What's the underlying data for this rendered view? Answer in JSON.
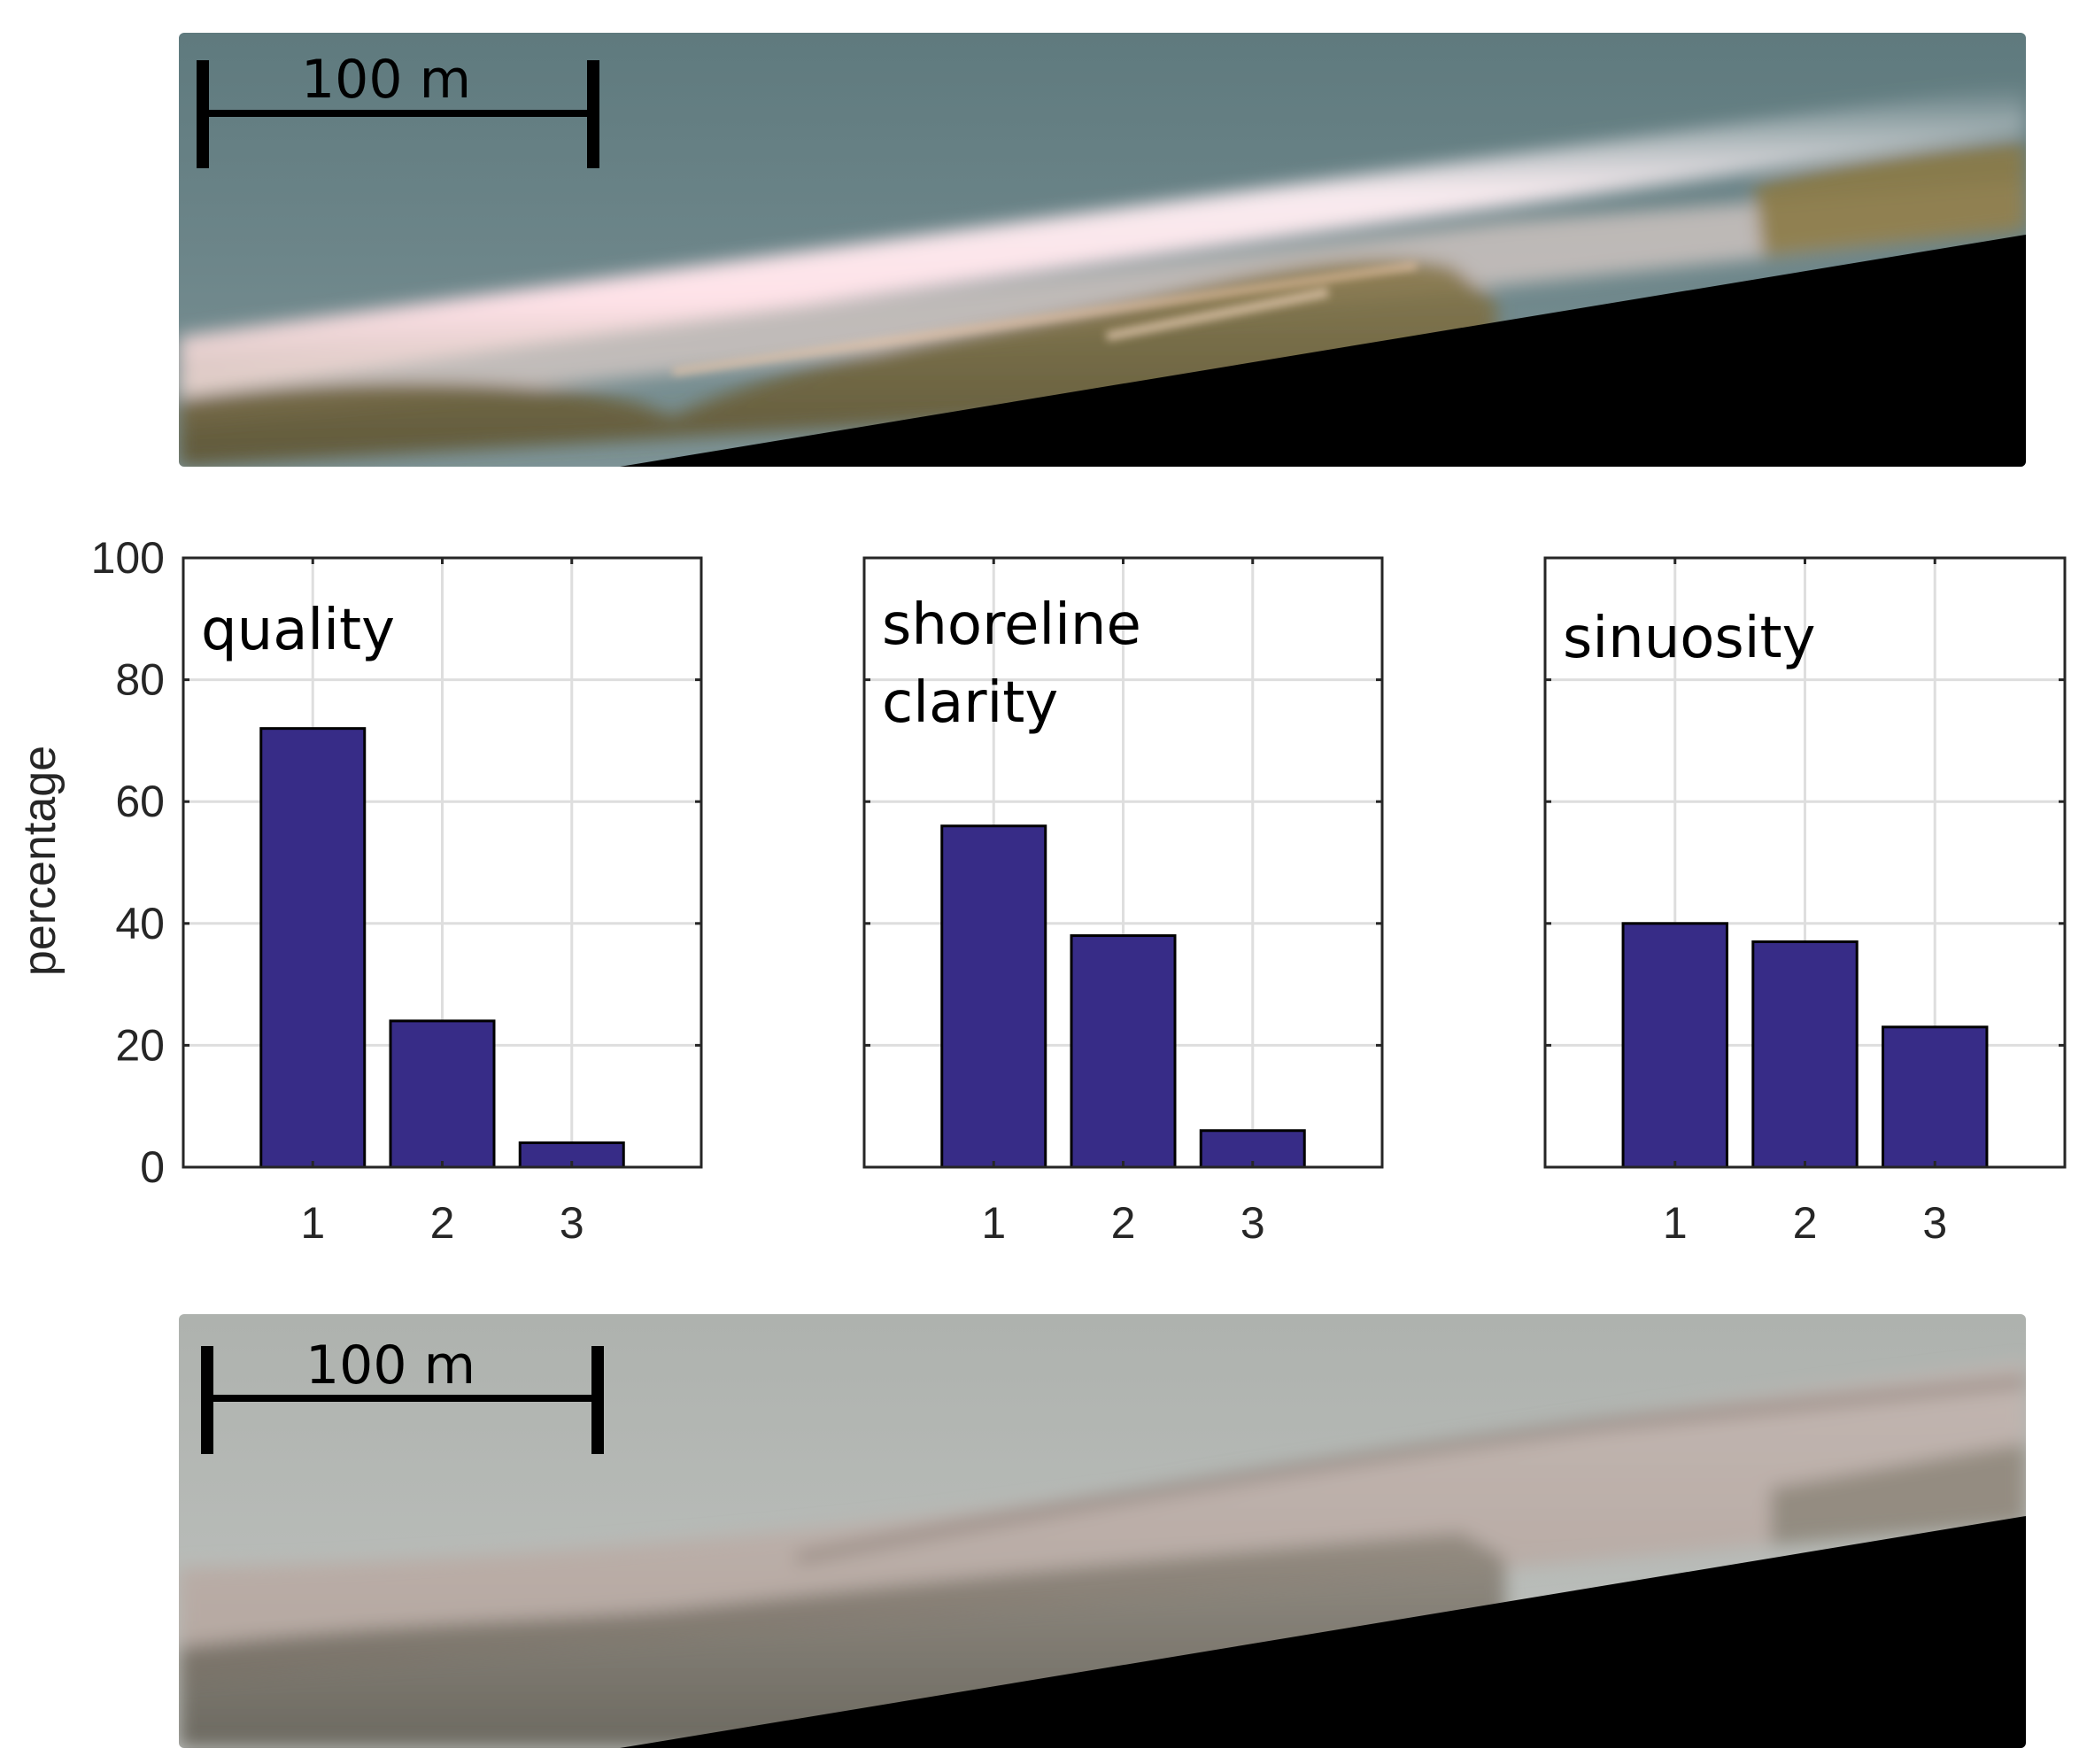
{
  "scale_bars": [
    {
      "label": "100 m"
    },
    {
      "label": "100 m"
    }
  ],
  "y_axis": {
    "label": "percentage",
    "ticks": [
      "0",
      "20",
      "40",
      "60",
      "80",
      "100"
    ]
  },
  "colors": {
    "bar": "#372c87",
    "grid": "#dedede",
    "axis": "#262626"
  },
  "chart_data": [
    {
      "type": "bar",
      "title": "quality",
      "categories": [
        "1",
        "2",
        "3"
      ],
      "values": [
        72,
        24,
        4
      ],
      "ylabel": "percentage",
      "ylim": [
        0,
        100
      ],
      "xlim": [
        0,
        4
      ],
      "grid": true,
      "legend": "none"
    },
    {
      "type": "bar",
      "title": "shoreline clarity",
      "title_lines": [
        "shoreline",
        "clarity"
      ],
      "categories": [
        "1",
        "2",
        "3"
      ],
      "values": [
        56,
        38,
        6
      ],
      "ylim": [
        0,
        100
      ],
      "xlim": [
        0,
        4
      ],
      "grid": true,
      "legend": "none"
    },
    {
      "type": "bar",
      "title": "sinuosity",
      "categories": [
        "1",
        "2",
        "3"
      ],
      "values": [
        40,
        37,
        23
      ],
      "ylim": [
        0,
        100
      ],
      "xlim": [
        0,
        4
      ],
      "grid": true,
      "legend": "none"
    }
  ]
}
